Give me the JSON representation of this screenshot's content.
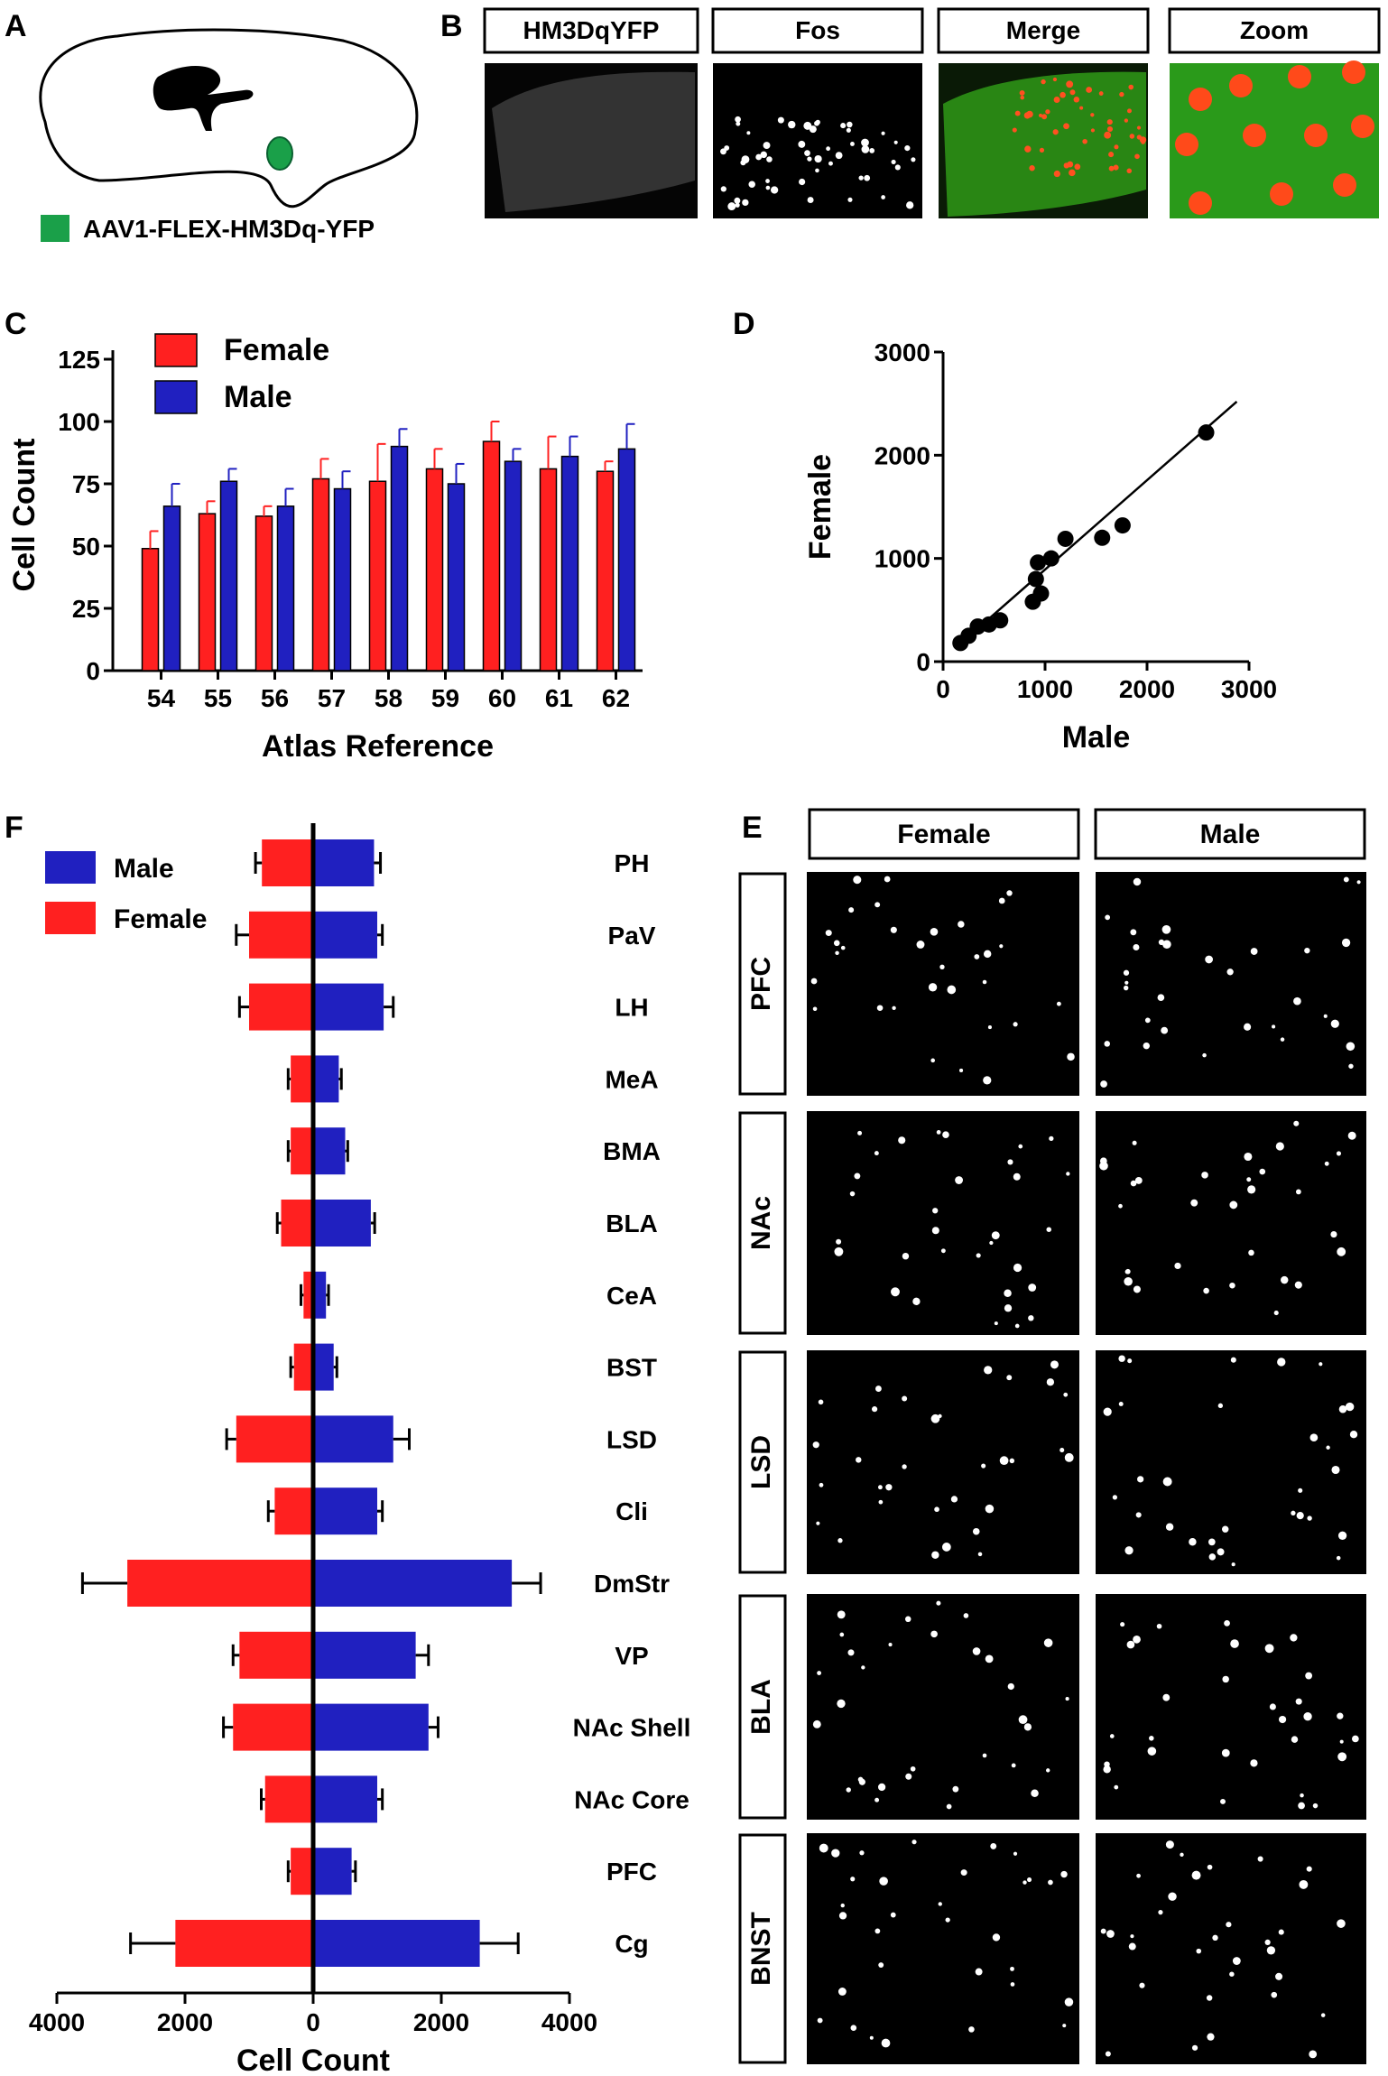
{
  "panels": {
    "A": "A",
    "B": "B",
    "C": "C",
    "D": "D",
    "E": "E",
    "F": "F"
  },
  "panelA": {
    "legend": "AAV1-FLEX-HM3Dq-YFP",
    "colors": {
      "marker": "#1aa049"
    }
  },
  "panelB": {
    "headers": [
      "HM3DqYFP",
      "Fos",
      "Merge",
      "Zoom"
    ]
  },
  "panelE": {
    "columns": [
      "Female",
      "Male"
    ],
    "rows": [
      "PFC",
      "NAc",
      "LSD",
      "BLA",
      "BNST"
    ]
  },
  "colors": {
    "female": "#ff2020",
    "male": "#2020c0",
    "axis": "#000000"
  },
  "chart_data": [
    {
      "id": "C",
      "type": "bar",
      "xlabel": "Atlas Reference",
      "ylabel": "Cell Count",
      "categories": [
        "54",
        "55",
        "56",
        "57",
        "58",
        "59",
        "60",
        "61",
        "62"
      ],
      "ylim": [
        0,
        125
      ],
      "yticks": [
        0,
        25,
        50,
        75,
        100,
        125
      ],
      "legend": [
        "Female",
        "Male"
      ],
      "series": [
        {
          "name": "Female",
          "values": [
            49,
            63,
            62,
            77,
            76,
            81,
            92,
            81,
            80
          ],
          "errors": [
            7,
            5,
            4,
            8,
            15,
            8,
            8,
            13,
            4
          ]
        },
        {
          "name": "Male",
          "values": [
            66,
            76,
            66,
            73,
            90,
            75,
            84,
            86,
            89
          ],
          "errors": [
            9,
            5,
            7,
            7,
            7,
            8,
            5,
            8,
            10
          ]
        }
      ]
    },
    {
      "id": "D",
      "type": "scatter",
      "xlabel": "Male",
      "ylabel": "Female",
      "xlim": [
        0,
        3000
      ],
      "ylim": [
        0,
        3000
      ],
      "xticks": [
        0,
        1000,
        2000,
        3000
      ],
      "yticks": [
        0,
        1000,
        2000,
        3000
      ],
      "points": [
        [
          170,
          180
        ],
        [
          250,
          250
        ],
        [
          340,
          340
        ],
        [
          450,
          360
        ],
        [
          560,
          400
        ],
        [
          880,
          580
        ],
        [
          910,
          800
        ],
        [
          930,
          960
        ],
        [
          960,
          660
        ],
        [
          1060,
          1000
        ],
        [
          1200,
          1190
        ],
        [
          1560,
          1200
        ],
        [
          1760,
          1320
        ],
        [
          2580,
          2220
        ]
      ],
      "fit_line": {
        "x": [
          120,
          2880
        ],
        "y": [
          130,
          2520
        ]
      }
    },
    {
      "id": "F",
      "type": "bar",
      "orientation": "horizontal",
      "xlabel": "Cell Count",
      "xlim": [
        -4000,
        4000
      ],
      "xticks": [
        "4000",
        "2000",
        "0",
        "2000",
        "4000"
      ],
      "legend": [
        "Male",
        "Female"
      ],
      "categories": [
        "PH",
        "PaV",
        "LH",
        "MeA",
        "BMA",
        "BLA",
        "CeA",
        "BST",
        "LSD",
        "Cli",
        "DmStr",
        "VP",
        "NAc Shell",
        "NAc Core",
        "PFC",
        "Cg"
      ],
      "series": [
        {
          "name": "Female",
          "values": [
            800,
            1000,
            1000,
            350,
            350,
            500,
            150,
            300,
            1200,
            600,
            2900,
            1150,
            1250,
            750,
            350,
            2150
          ],
          "errors": [
            100,
            200,
            150,
            40,
            40,
            60,
            40,
            50,
            150,
            100,
            700,
            100,
            150,
            60,
            40,
            700
          ]
        },
        {
          "name": "Male",
          "values": [
            950,
            1000,
            1100,
            400,
            500,
            900,
            200,
            320,
            1250,
            1000,
            3100,
            1600,
            1800,
            1000,
            600,
            2600
          ],
          "errors": [
            100,
            80,
            150,
            40,
            40,
            60,
            40,
            50,
            250,
            80,
            450,
            200,
            150,
            80,
            60,
            600
          ]
        }
      ]
    }
  ]
}
